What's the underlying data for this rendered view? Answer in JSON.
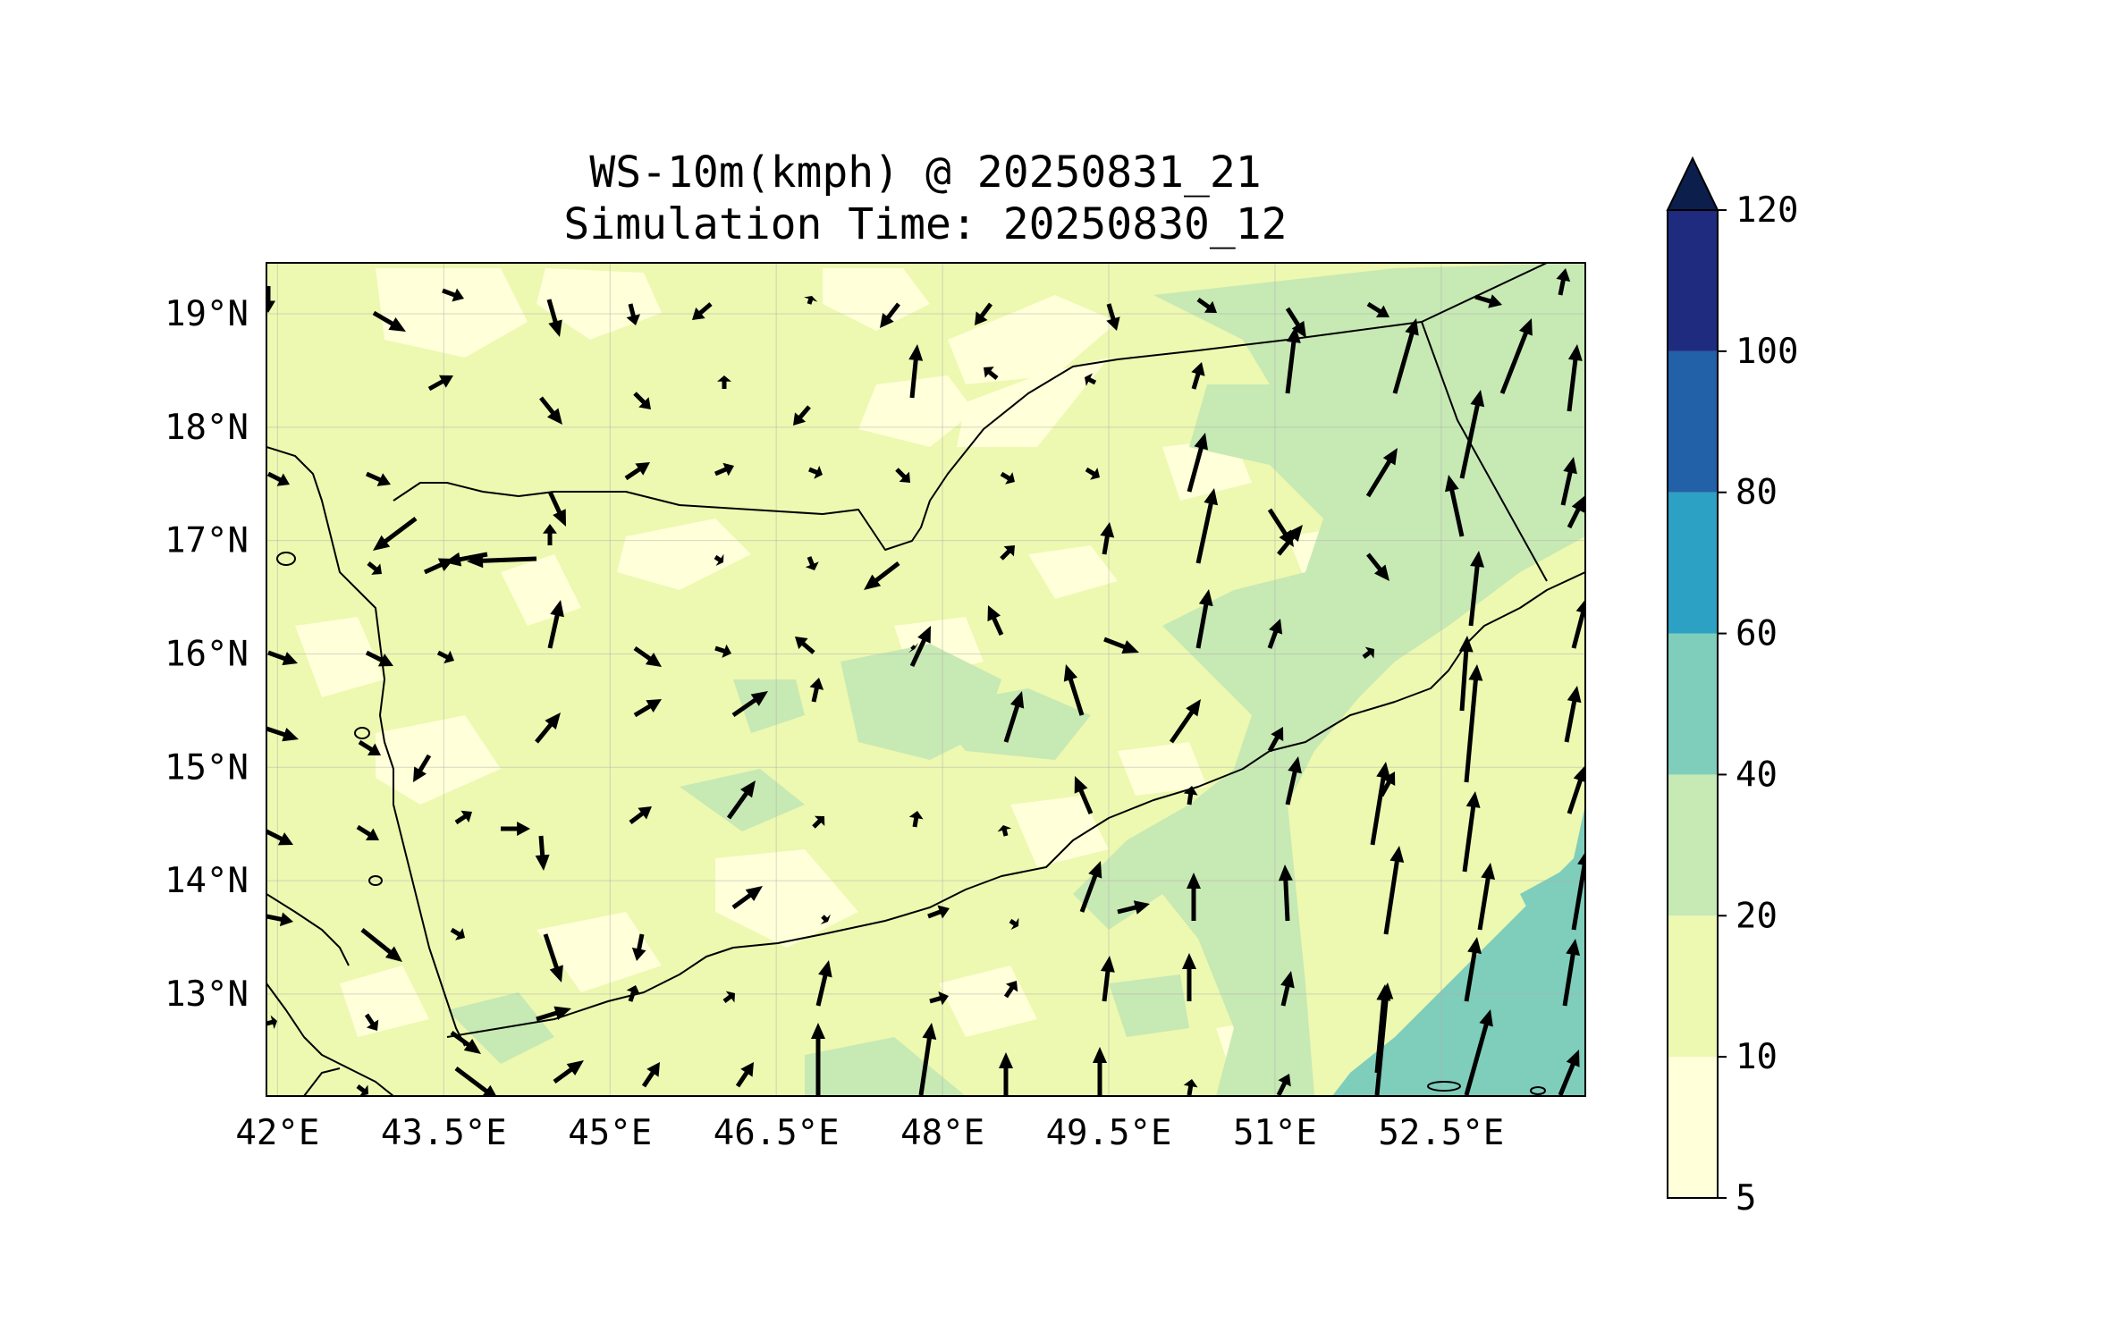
{
  "title_line1": "WS-10m(kmph) @ 20250831_21",
  "title_line2": "Simulation Time: 20250830_12",
  "map": {
    "lon_range": [
      41.9,
      53.8
    ],
    "lat_range": [
      12.1,
      19.45
    ],
    "x_ticks": [
      {
        "value": 42.0,
        "label": "42°E"
      },
      {
        "value": 43.5,
        "label": "43.5°E"
      },
      {
        "value": 45.0,
        "label": "45°E"
      },
      {
        "value": 46.5,
        "label": "46.5°E"
      },
      {
        "value": 48.0,
        "label": "48°E"
      },
      {
        "value": 49.5,
        "label": "49.5°E"
      },
      {
        "value": 51.0,
        "label": "51°E"
      },
      {
        "value": 52.5,
        "label": "52.5°E"
      }
    ],
    "y_ticks": [
      {
        "value": 19,
        "label": "19°N"
      },
      {
        "value": 18,
        "label": "18°N"
      },
      {
        "value": 17,
        "label": "17°N"
      },
      {
        "value": 16,
        "label": "16°N"
      },
      {
        "value": 15,
        "label": "15°N"
      },
      {
        "value": 14,
        "label": "14°N"
      },
      {
        "value": 13,
        "label": "13°N"
      }
    ],
    "gridlines": true
  },
  "colorbar": {
    "levels": [
      {
        "from": 5,
        "to": 10,
        "color": "#ffffd9"
      },
      {
        "from": 10,
        "to": 20,
        "color": "#edf8b1"
      },
      {
        "from": 20,
        "to": 40,
        "color": "#c7e9b4"
      },
      {
        "from": 40,
        "to": 60,
        "color": "#7fcdbb"
      },
      {
        "from": 60,
        "to": 80,
        "color": "#2ca1c4"
      },
      {
        "from": 80,
        "to": 100,
        "color": "#2260a8"
      },
      {
        "from": 100,
        "to": 120,
        "color": "#1e2b7e"
      }
    ],
    "extend_color": "#0c1e4c",
    "tick_labels": [
      "5",
      "10",
      "20",
      "40",
      "60",
      "80",
      "100",
      "120"
    ]
  },
  "colors": {
    "background_low": "#ffffd9",
    "low_wind": "#edf8b1",
    "moderate_wind": "#c7e9b4",
    "high_wind": "#7fcdbb",
    "arrow": "#000000",
    "coastline": "#000000"
  }
}
